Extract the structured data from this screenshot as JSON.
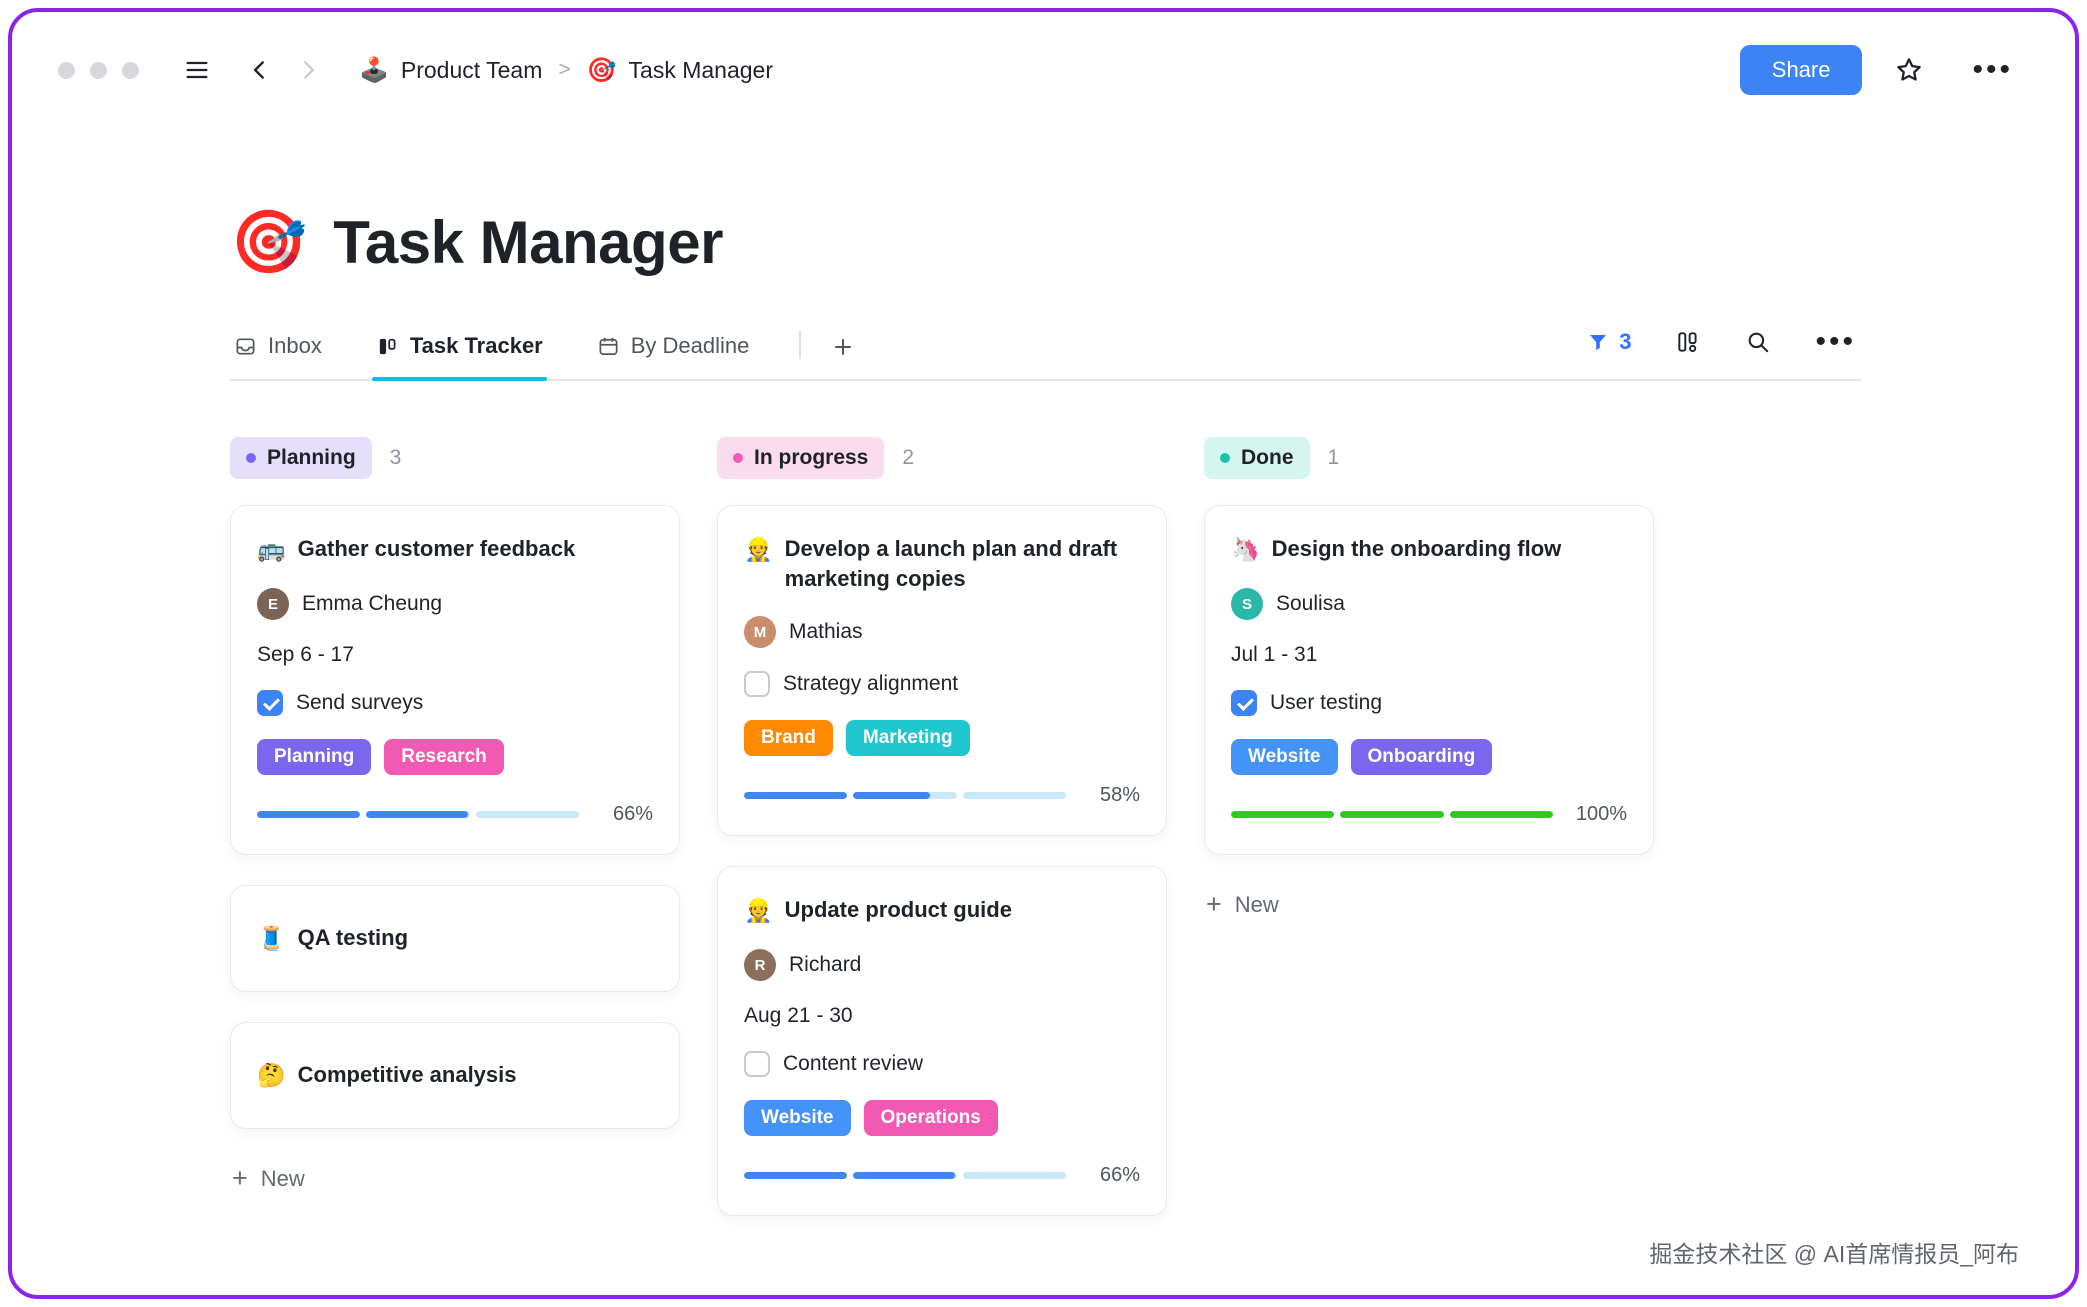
{
  "window": {
    "accent": "#3C83F6",
    "share_label": "Share",
    "breadcrumb": {
      "team_icon": "🕹️",
      "team": "Product Team",
      "separator": ">",
      "page_icon": "🎯",
      "page": "Task Manager"
    }
  },
  "page": {
    "icon": "🎯",
    "title": "Task Manager"
  },
  "tabs": {
    "items": [
      {
        "label": "Inbox"
      },
      {
        "label": "Task Tracker"
      },
      {
        "label": "By Deadline"
      }
    ],
    "filter_count": "3"
  },
  "board": {
    "columns": [
      {
        "name": "Planning",
        "count": "3",
        "dot": "#7B67EE",
        "badge_bg": "#E5DFFC",
        "new_label": "New",
        "cards": [
          {
            "icon": "🚌",
            "title": "Gather customer feedback",
            "assignee": {
              "name": "Emma Cheung",
              "initial": "E",
              "avatar_bg": "#7a6455"
            },
            "dates": "Sep 6 - 17",
            "checklist": {
              "label": "Send surveys",
              "checked": true
            },
            "tags": [
              {
                "label": "Planning",
                "bg": "#7B67EE"
              },
              {
                "label": "Research",
                "bg": "#F159B2"
              }
            ],
            "progress": {
              "label": "66%",
              "fill": "#3D86F4",
              "track": "#C9E9FA",
              "segments": [
                100,
                98,
                0
              ]
            }
          },
          {
            "icon": "🧵",
            "title": "QA testing"
          },
          {
            "icon": "🤔",
            "title": "Competitive analysis"
          }
        ]
      },
      {
        "name": "In progress",
        "count": "2",
        "dot": "#F159B2",
        "badge_bg": "#FBDCEF",
        "cards": [
          {
            "icon": "👷",
            "title": "Develop a launch plan and draft marketing copies",
            "assignee": {
              "name": "Mathias",
              "initial": "M",
              "avatar_bg": "#c98d6b"
            },
            "checklist": {
              "label": "Strategy alignment",
              "checked": false
            },
            "tags": [
              {
                "label": "Brand",
                "bg": "#FF8A00"
              },
              {
                "label": "Marketing",
                "bg": "#1FC6CE"
              }
            ],
            "progress": {
              "label": "58%",
              "fill": "#3D86F4",
              "track": "#C9E9FA",
              "segments": [
                100,
                74,
                0
              ]
            }
          },
          {
            "icon": "👷",
            "title": "Update product guide",
            "assignee": {
              "name": "Richard",
              "initial": "R",
              "avatar_bg": "#8c6f5a"
            },
            "dates": "Aug 21 - 30",
            "checklist": {
              "label": "Content review",
              "checked": false
            },
            "tags": [
              {
                "label": "Website",
                "bg": "#4493F8"
              },
              {
                "label": "Operations",
                "bg": "#F159B2"
              }
            ],
            "progress": {
              "label": "66%",
              "fill": "#3D86F4",
              "track": "#C9E9FA",
              "segments": [
                100,
                98,
                0
              ]
            }
          }
        ]
      },
      {
        "name": "Done",
        "count": "1",
        "dot": "#1FC0AD",
        "badge_bg": "#D5F6EE",
        "new_label": "New",
        "cards": [
          {
            "icon": "🦄",
            "title": "Design the onboarding flow",
            "assignee": {
              "name": "Soulisa",
              "initial": "S",
              "avatar_bg": "#2bb8a8"
            },
            "dates": "Jul 1 - 31",
            "checklist": {
              "label": "User testing",
              "checked": true
            },
            "tags": [
              {
                "label": "Website",
                "bg": "#4493F8"
              },
              {
                "label": "Onboarding",
                "bg": "#7B67EE"
              }
            ],
            "progress": {
              "label": "100%",
              "fill": "#34C724",
              "track": "#BDF0B0",
              "segments": [
                100,
                100,
                100
              ]
            }
          }
        ]
      }
    ]
  },
  "watermark": "掘金技术社区 @ AI首席情报员_阿布"
}
